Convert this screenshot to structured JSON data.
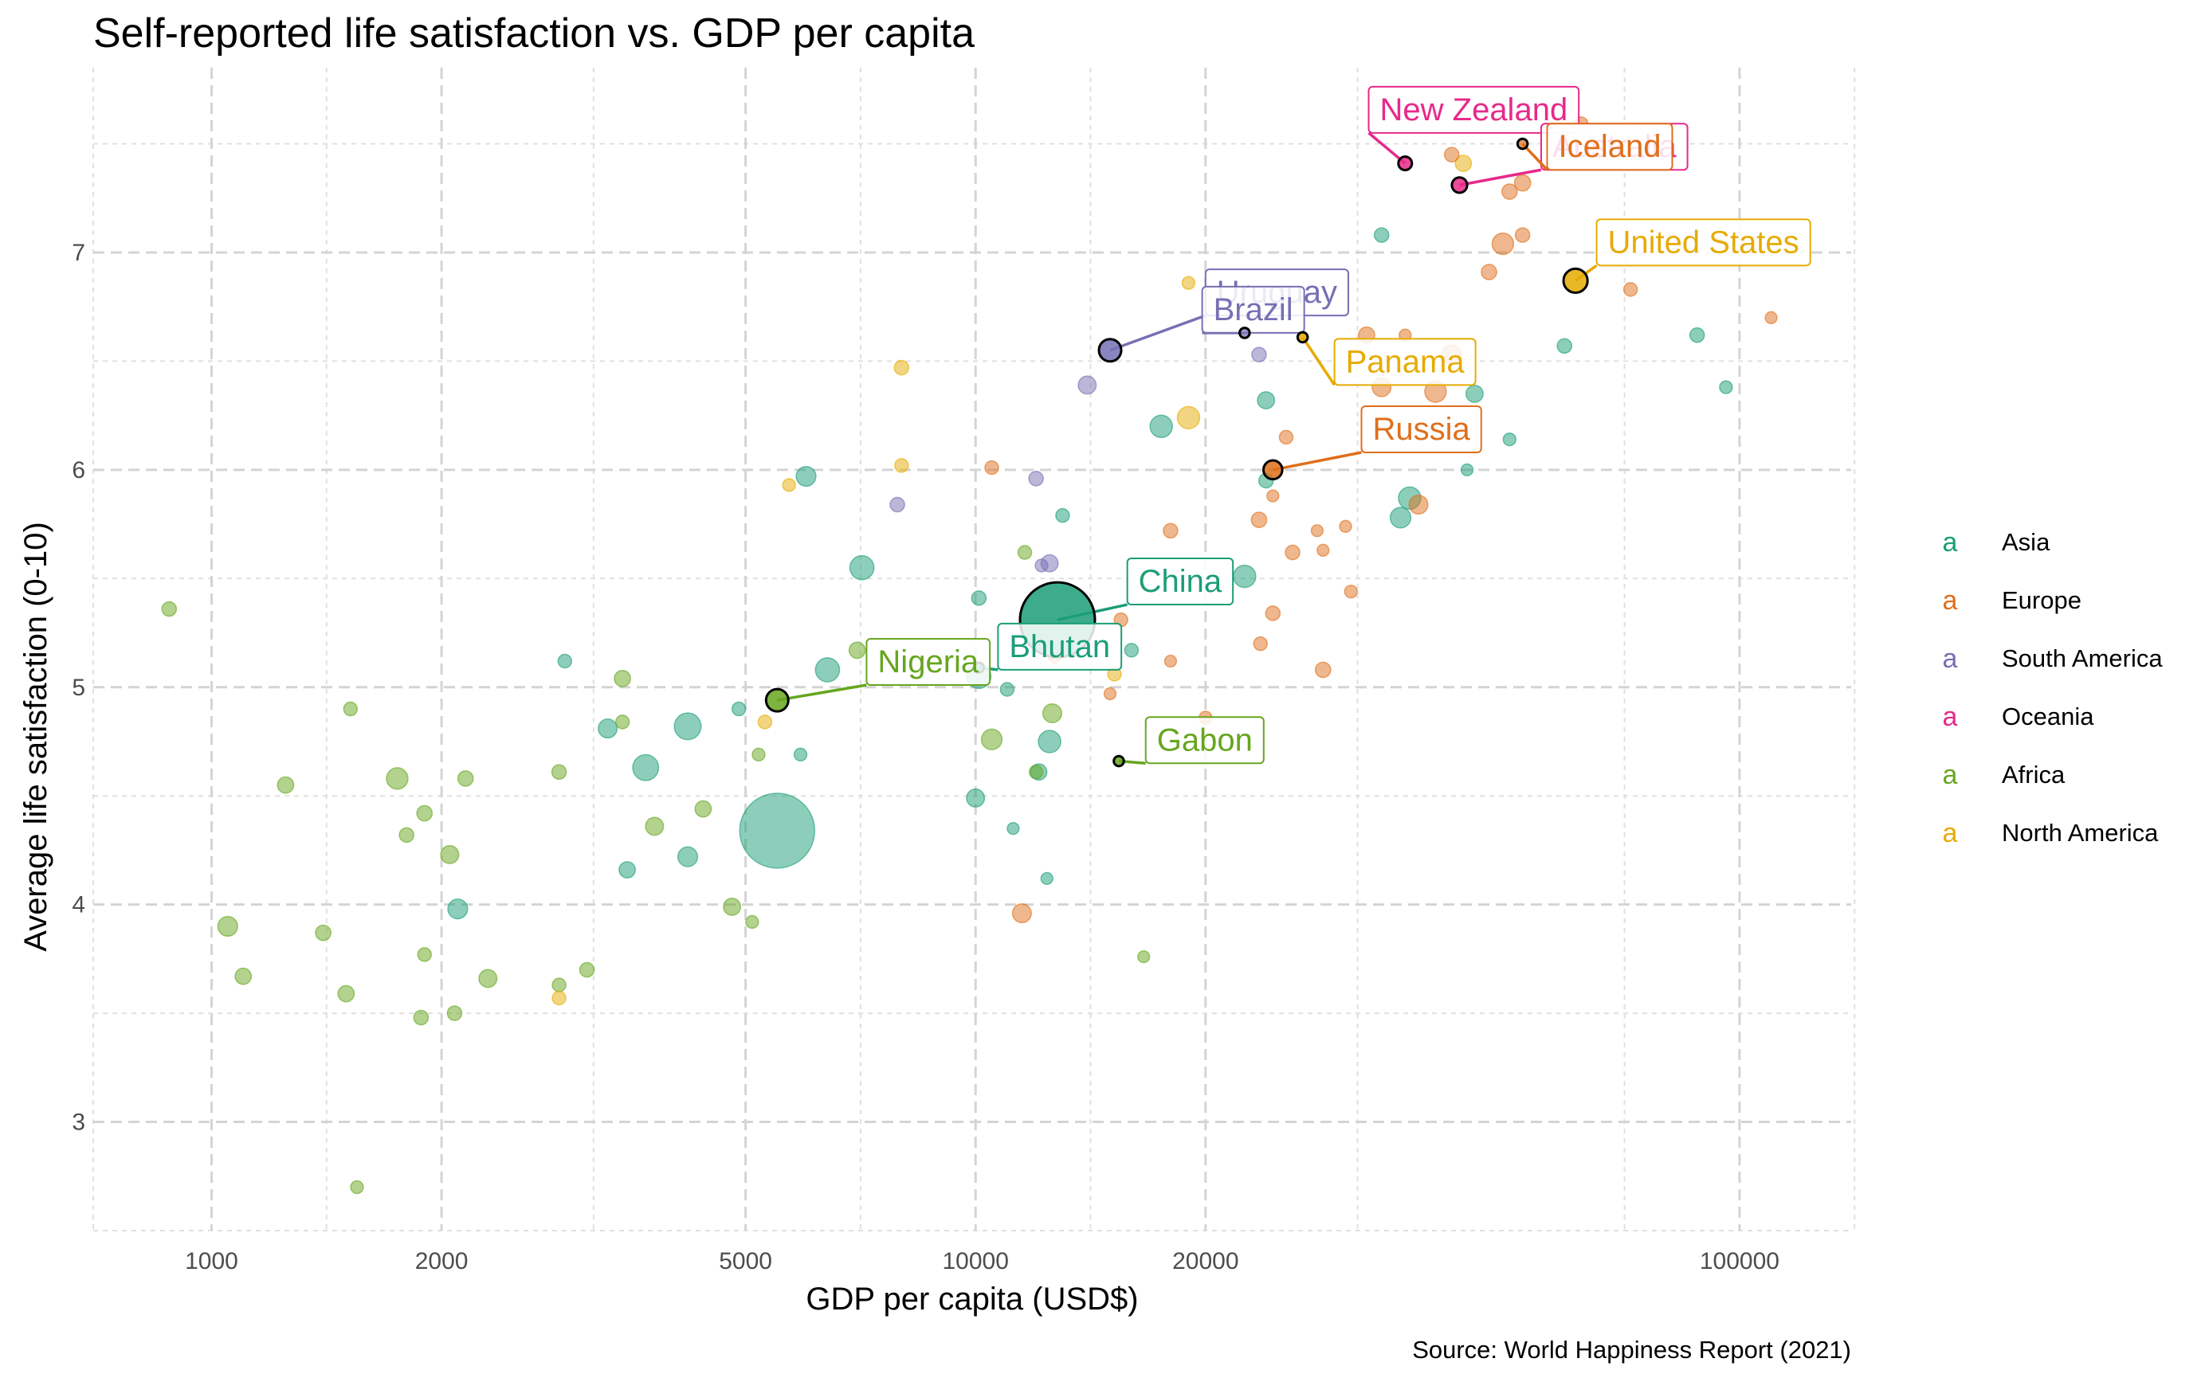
{
  "chart_data": {
    "type": "scatter",
    "title": "Self-reported life satisfaction vs. GDP per capita",
    "xlabel": "GDP per capita (USD$)",
    "ylabel": "Average life satisfaction (0-10)",
    "caption": "Source: World Happiness Report (2021)",
    "x_scale": "log",
    "xlim": [
      700,
      140000
    ],
    "ylim": [
      2.5,
      7.85
    ],
    "x_ticks": [
      1000,
      2000,
      5000,
      10000,
      20000,
      100000
    ],
    "x_tick_labels": [
      "1000",
      "2000",
      "5000",
      "10000",
      "20000",
      "100000"
    ],
    "x_minor_gridlines": [
      700,
      1414,
      3162,
      7071,
      14142,
      31623,
      70711,
      141421
    ],
    "y_ticks": [
      3,
      4,
      5,
      6,
      7
    ],
    "y_tick_labels": [
      "3",
      "4",
      "5",
      "6",
      "7"
    ],
    "y_minor_gridlines": [
      2.5,
      3.5,
      4.5,
      5.5,
      6.5,
      7.5
    ],
    "grid": true,
    "legend_position": "right",
    "legend_glyph": "a",
    "colors": {
      "Asia": "#1b9e77",
      "Europe": "#e06f1b",
      "South America": "#7570b3",
      "Oceania": "#e7298a",
      "Africa": "#66a61e",
      "North America": "#e6ab02"
    },
    "legend": [
      "Asia",
      "Europe",
      "South America",
      "Oceania",
      "Africa",
      "North America"
    ],
    "series": [
      {
        "name": "Asia",
        "points": [
          [
            5500,
            4.34,
            8.0
          ],
          [
            12800,
            5.31,
            8.0
          ],
          [
            4200,
            4.82,
            2.5
          ],
          [
            3700,
            4.63,
            2.4
          ],
          [
            6400,
            5.08,
            2.2
          ],
          [
            7100,
            5.55,
            2.2
          ],
          [
            10100,
            5.05,
            2.2
          ],
          [
            12500,
            4.75,
            2.0
          ],
          [
            17500,
            6.2,
            2.0
          ],
          [
            22500,
            5.51,
            2.0
          ],
          [
            37000,
            5.87,
            2.0
          ],
          [
            36000,
            5.78,
            1.8
          ],
          [
            4200,
            4.22,
            1.7
          ],
          [
            2100,
            3.98,
            1.7
          ],
          [
            6000,
            5.97,
            1.7
          ],
          [
            3300,
            4.81,
            1.6
          ],
          [
            10000,
            4.49,
            1.5
          ],
          [
            12100,
            4.61,
            1.3
          ],
          [
            24000,
            6.32,
            1.4
          ],
          [
            45000,
            6.35,
            1.4
          ],
          [
            11000,
            4.99,
            1.0
          ],
          [
            13000,
            5.79,
            1.0
          ],
          [
            16000,
            5.17,
            1.0
          ],
          [
            24000,
            5.95,
            1.1
          ],
          [
            10100,
            5.41,
            1.1
          ],
          [
            2900,
            5.12,
            1.0
          ],
          [
            4900,
            4.9,
            1.0
          ],
          [
            3500,
            4.16,
            1.3
          ],
          [
            5900,
            4.69,
            0.9
          ],
          [
            11200,
            4.35,
            0.8
          ],
          [
            12400,
            4.12,
            0.8
          ],
          [
            34000,
            7.08,
            1.1
          ],
          [
            59000,
            6.57,
            1.1
          ],
          [
            88000,
            6.62,
            1.1
          ],
          [
            96000,
            6.38,
            0.9
          ],
          [
            50000,
            6.14,
            0.9
          ],
          [
            44000,
            6.0,
            0.8
          ]
        ]
      },
      {
        "name": "Europe",
        "points": [
          [
            40000,
            6.36,
            1.9
          ],
          [
            49000,
            7.04,
            1.9
          ],
          [
            42000,
            6.53,
            1.7
          ],
          [
            34000,
            6.38,
            1.6
          ],
          [
            38000,
            5.84,
            1.6
          ],
          [
            52000,
            7.32,
            1.3
          ],
          [
            47000,
            6.91,
            1.2
          ],
          [
            24500,
            6.0,
            1.6
          ],
          [
            23500,
            5.77,
            1.2
          ],
          [
            25500,
            6.15,
            1.0
          ],
          [
            26000,
            5.62,
            1.1
          ],
          [
            28500,
            5.08,
            1.2
          ],
          [
            24500,
            5.34,
            1.1
          ],
          [
            20000,
            4.86,
            0.9
          ],
          [
            18000,
            5.72,
            1.1
          ],
          [
            15500,
            5.31,
            1.0
          ],
          [
            12700,
            5.14,
            0.9
          ],
          [
            11500,
            3.96,
            1.6
          ],
          [
            10500,
            6.01,
            1.0
          ],
          [
            31000,
            5.44,
            0.9
          ],
          [
            32500,
            6.62,
            1.3
          ],
          [
            36500,
            6.62,
            0.8
          ],
          [
            42000,
            7.45,
            1.1
          ],
          [
            50000,
            7.28,
            1.2
          ],
          [
            52000,
            7.08,
            1.1
          ],
          [
            62000,
            7.59,
            1.1
          ],
          [
            72000,
            6.83,
            1.0
          ],
          [
            110000,
            6.7,
            0.8
          ],
          [
            58000,
            7.47,
            0.8
          ],
          [
            28000,
            5.72,
            0.8
          ],
          [
            30500,
            5.74,
            0.8
          ],
          [
            24500,
            5.88,
            0.8
          ],
          [
            28500,
            5.63,
            0.8
          ],
          [
            15000,
            4.97,
            0.8
          ],
          [
            18000,
            5.12,
            0.8
          ],
          [
            23600,
            5.2,
            1.0
          ]
        ]
      },
      {
        "name": "South America",
        "points": [
          [
            15000,
            6.55,
            2.0
          ],
          [
            14000,
            6.39,
            1.5
          ],
          [
            12500,
            5.57,
            1.4
          ],
          [
            7900,
            5.84,
            1.1
          ],
          [
            12000,
            5.96,
            1.1
          ],
          [
            23500,
            6.53,
            1.1
          ],
          [
            12200,
            5.56,
            0.9
          ]
        ]
      },
      {
        "name": "Oceania",
        "points": [
          [
            43000,
            7.31,
            1.2
          ],
          [
            36500,
            7.41,
            1.0
          ]
        ]
      },
      {
        "name": "Africa",
        "points": [
          [
            5500,
            4.94,
            2.0
          ],
          [
            1750,
            4.58,
            1.9
          ],
          [
            1050,
            3.9,
            1.7
          ],
          [
            10500,
            4.76,
            1.8
          ],
          [
            12600,
            4.88,
            1.6
          ],
          [
            2050,
            4.23,
            1.5
          ],
          [
            2300,
            3.66,
            1.5
          ],
          [
            3800,
            4.36,
            1.5
          ],
          [
            4800,
            3.99,
            1.4
          ],
          [
            7000,
            5.17,
            1.3
          ],
          [
            3450,
            5.04,
            1.3
          ],
          [
            1250,
            4.55,
            1.3
          ],
          [
            1100,
            3.67,
            1.3
          ],
          [
            1500,
            3.59,
            1.3
          ],
          [
            1400,
            3.87,
            1.2
          ],
          [
            1900,
            4.42,
            1.2
          ],
          [
            2150,
            4.58,
            1.2
          ],
          [
            3100,
            3.7,
            1.1
          ],
          [
            4400,
            4.44,
            1.3
          ],
          [
            2850,
            4.61,
            1.1
          ],
          [
            1800,
            4.32,
            1.1
          ],
          [
            1880,
            3.48,
            1.1
          ],
          [
            2080,
            3.5,
            1.1
          ],
          [
            1520,
            4.9,
            1.0
          ],
          [
            880,
            5.36,
            1.1
          ],
          [
            1900,
            3.77,
            1.0
          ],
          [
            2850,
            3.63,
            1.0
          ],
          [
            3450,
            4.84,
            1.0
          ],
          [
            5200,
            4.69,
            0.9
          ],
          [
            5100,
            3.92,
            0.9
          ],
          [
            11600,
            5.62,
            1.0
          ],
          [
            12000,
            4.61,
            1.0
          ],
          [
            16600,
            3.76,
            0.8
          ],
          [
            1550,
            2.7,
            0.9
          ],
          [
            15400,
            4.66,
            0.6
          ],
          [
            10100,
            5.09,
            0.6
          ]
        ]
      },
      {
        "name": "North America",
        "points": [
          [
            61000,
            6.87,
            2.2
          ],
          [
            19000,
            6.24,
            2.0
          ],
          [
            43500,
            7.41,
            1.3
          ],
          [
            8000,
            6.47,
            1.1
          ],
          [
            8000,
            6.02,
            1.0
          ],
          [
            5700,
            5.93,
            0.9
          ],
          [
            5300,
            4.84,
            1.0
          ],
          [
            2850,
            3.57,
            1.0
          ],
          [
            15200,
            5.06,
            1.0
          ],
          [
            19000,
            6.86,
            0.9
          ],
          [
            26800,
            6.61,
            0.7
          ]
        ]
      }
    ],
    "annotations": [
      {
        "label": "New Zealand",
        "region": "Oceania",
        "x": 36500,
        "y": 7.41,
        "size": 1.0,
        "lx": 32700,
        "ly": 7.66
      },
      {
        "label": "Australia",
        "region": "Oceania",
        "x": 43000,
        "y": 7.31,
        "size": 1.2,
        "lx": 55000,
        "ly": 7.49
      },
      {
        "label": "Iceland",
        "region": "Europe",
        "x": 52000,
        "y": 7.5,
        "size": 0.6,
        "lx": 56000,
        "ly": 7.49
      },
      {
        "label": "United States",
        "region": "North America",
        "x": 61000,
        "y": 6.87,
        "size": 2.2,
        "lx": 65000,
        "ly": 7.05
      },
      {
        "label": "Uruguay",
        "region": "South America",
        "x": 15000,
        "y": 6.55,
        "size": 2.0,
        "lx": 20000,
        "ly": 6.82
      },
      {
        "label": "Brazil",
        "region": "South America",
        "x": 22500,
        "y": 6.63,
        "size": 0.6,
        "lx": 19800,
        "ly": 6.74
      },
      {
        "label": "Panama",
        "region": "North America",
        "x": 26800,
        "y": 6.61,
        "size": 0.6,
        "lx": 29500,
        "ly": 6.5
      },
      {
        "label": "Russia",
        "region": "Europe",
        "x": 24500,
        "y": 6.0,
        "size": 1.6,
        "lx": 32000,
        "ly": 6.19
      },
      {
        "label": "China",
        "region": "Asia",
        "x": 12800,
        "y": 5.31,
        "size": 8.0,
        "lx": 15800,
        "ly": 5.49
      },
      {
        "label": "Bhutan",
        "region": "Asia",
        "x": 10100,
        "y": 5.09,
        "size": 0.6,
        "lx": 10700,
        "ly": 5.19
      },
      {
        "label": "Nigeria",
        "region": "Africa",
        "x": 5500,
        "y": 4.94,
        "size": 2.0,
        "lx": 7200,
        "ly": 5.12
      },
      {
        "label": "Gabon",
        "region": "Africa",
        "x": 15400,
        "y": 4.66,
        "size": 0.6,
        "lx": 16700,
        "ly": 4.76
      }
    ]
  }
}
